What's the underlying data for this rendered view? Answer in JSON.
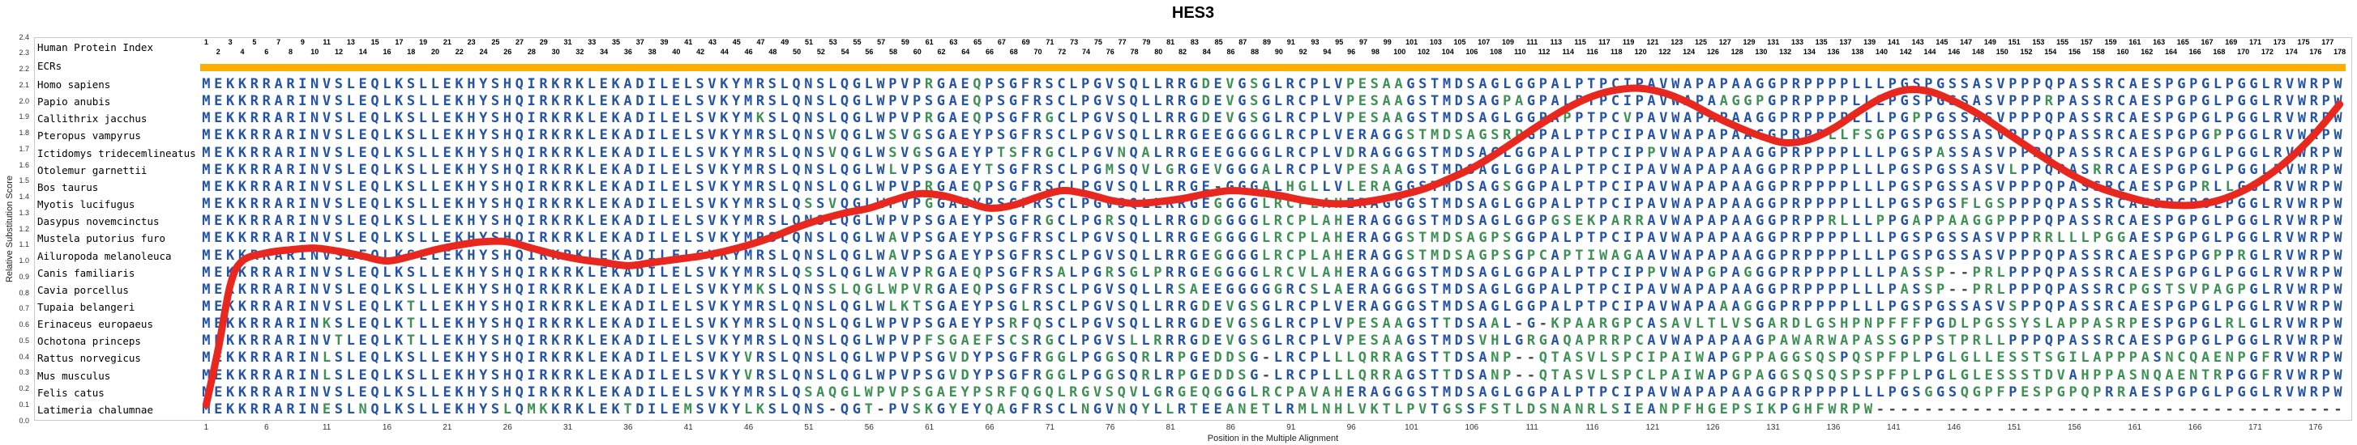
{
  "title": "HES3",
  "axes": {
    "y_label": "Relative Substitution Score",
    "x_label": "Position in the Multiple Alignment",
    "y_ticks": [
      "2.4",
      "2.3",
      "2.2",
      "2.1",
      "2.0",
      "1.9",
      "1.8",
      "1.7",
      "1.6",
      "1.5",
      "1.4",
      "1.3",
      "1.2",
      "1.1",
      "1.0",
      "0.9",
      "0.8",
      "0.7",
      "0.6",
      "0.5",
      "0.4",
      "0.3",
      "0.2",
      "0.1",
      "0.0"
    ],
    "x_ticks": [
      1,
      6,
      11,
      16,
      21,
      26,
      31,
      36,
      41,
      46,
      51,
      56,
      61,
      66,
      71,
      76,
      81,
      86,
      91,
      96,
      101,
      106,
      111,
      116,
      121,
      126,
      131,
      136,
      141,
      146,
      151,
      156,
      161,
      166,
      171,
      176
    ]
  },
  "header": {
    "index_label": "Human Protein Index",
    "ecr_label": "ECRs",
    "positions_start": 1,
    "positions_end": 178
  },
  "colors": {
    "match": "#2553A6",
    "mismatch": "#3E9155",
    "gap": "#4a4a4a",
    "curve": "#E8281E",
    "ecr_bar": "#FFAD00",
    "tick": "#333333"
  },
  "chart_data": {
    "type": "line",
    "title": "HES3",
    "xlabel": "Position in the Multiple Alignment",
    "ylabel": "Relative Substitution Score",
    "ylim": [
      0.0,
      2.4
    ],
    "xlim": [
      1,
      178
    ],
    "score_curve": {
      "x": [
        1,
        2,
        3,
        4,
        6,
        8,
        10,
        12,
        14,
        16,
        18,
        20,
        22,
        24,
        26,
        28,
        30,
        32,
        34,
        36,
        38,
        40,
        42,
        44,
        46,
        48,
        50,
        52,
        54,
        56,
        58,
        60,
        62,
        64,
        66,
        68,
        70,
        72,
        74,
        76,
        78,
        80,
        82,
        84,
        86,
        88,
        90,
        92,
        94,
        96,
        98,
        100,
        102,
        104,
        106,
        108,
        110,
        112,
        114,
        116,
        118,
        120,
        122,
        124,
        126,
        128,
        130,
        132,
        134,
        136,
        138,
        140,
        142,
        144,
        146,
        148,
        150,
        152,
        154,
        156,
        158,
        160,
        162,
        164,
        166,
        168,
        170,
        172,
        174,
        176,
        178
      ],
      "y": [
        0.1,
        0.45,
        0.85,
        1.0,
        1.05,
        1.07,
        1.08,
        1.06,
        1.03,
        1.0,
        1.03,
        1.07,
        1.1,
        1.12,
        1.12,
        1.08,
        1.04,
        1.01,
        0.99,
        0.97,
        0.99,
        1.01,
        1.03,
        1.06,
        1.1,
        1.15,
        1.21,
        1.26,
        1.3,
        1.33,
        1.38,
        1.42,
        1.41,
        1.37,
        1.33,
        1.35,
        1.4,
        1.44,
        1.42,
        1.38,
        1.36,
        1.37,
        1.39,
        1.42,
        1.44,
        1.43,
        1.41,
        1.38,
        1.36,
        1.36,
        1.38,
        1.41,
        1.45,
        1.51,
        1.58,
        1.67,
        1.77,
        1.87,
        1.96,
        2.03,
        2.07,
        2.08,
        2.05,
        1.99,
        1.91,
        1.84,
        1.78,
        1.74,
        1.76,
        1.83,
        1.93,
        2.02,
        2.07,
        2.06,
        2.0,
        1.92,
        1.82,
        1.72,
        1.62,
        1.53,
        1.46,
        1.41,
        1.37,
        1.35,
        1.35,
        1.38,
        1.44,
        1.53,
        1.65,
        1.8,
        1.98
      ]
    },
    "alignment": {
      "length": 178,
      "species": [
        {
          "name": "Homo sapiens",
          "sequence": "MEKKRRARINVSLEQLKSLLEKHYSHQIRKRKLEKADILELSVKYMRSLQNSLQGLWPVPRGAEQPSGFRSCLPGVSQLLRRGDEVGSGLRCPLVPESAAGSTMDSAGLGGPALPTPCIPAVWAPAPAAGGPRPPPPLLLPGSPGSSASVPPPQPASSRCAESPGPGLPGGLRVWRPW"
        },
        {
          "name": "Papio anubis",
          "sequence": "MEKKRRARINVSLEQLKSLLEKHYSHQIRKRKLEKADILELSVKYMRSLQNSLQGLWPVPSGAEQPSGFRSCLPGVSQLLRRGDEVGSGLRCPLVPESAAGSTMDSAGPAGPALPTPCIPAVWAPAAGGPGPRPPPPLLLPGSPGSSASVPPPRPASSRCAESPGPGLPGGLRVWRPW"
        },
        {
          "name": "Callithrix jacchus",
          "sequence": "MEKKRRARINVSLEQLKSLLEKHYSHQIRKRKLEKADILELSVKYMKSLQNSLQGLWPVPRGAEQPSGFRGCLPGVSQLLRRGDEVGSGLRCPLVPESAAGSTMDSAGLGGPAPPTPCVPAVWAPAPAAGGPRPPPPLLLPGPPGSSASVPPPQPASSRCAESPGPGLPGGLRVWRPW"
        },
        {
          "name": "Pteropus vampyrus",
          "sequence": "MEKKRRARINVSLEQLKSLLEKHYSHQIRKRKLEKADILELSVKYMRSLQNSVQGLWSVGSGAEYPSGFRSCLPGVSQLLRRGEEGGGGLRCPLVERAGGSTMDSAGSRPGPALPTPCIPAVWAPAPAAGGPRPPLLFSGPGSPGSSASVPPPQPASSRCAESPGPGPPGGLRVWRPW"
        },
        {
          "name": "Ictidomys tridecemlineatus",
          "sequence": "MEKKRRARINVSLEQLKSLLEKHYSHQIRKRKLEKADILELSVKYMRSLQNSVQGLWSVGSGAEYPTSFRGCLPGVNQALRRGEEGGGGLRCPLVDRAGGGSTMDSAGLGGPALPTPCIPPVWAPAPAAGGPRPPPPLLLPGSPASSASVPPPQPASSRCAESPGPGLPGGLRVWRPW"
        },
        {
          "name": "Otolemur garnettii",
          "sequence": "MEKKRRARINVSLEQLKSLLEKHYSHQIRKRKLEKADILELSVKYMRSLQNSLQGLWLVPSGAEYTSGFRSCLPGMSQVLGRGEVGGGALRCPLVPESAAGSTMDSAGLGGPALPTPCIPAVWAPAPAAGGPRPPPPLLLPGSPGSSASVLPPQPASRRCAESPGPGLPGGLRVWRPW"
        },
        {
          "name": "Bos taurus",
          "sequence": "MEKKRRARINVSLEQLKSLLEKHYSHQIRKRKLEKADILELSVKYMRSLQNSLQGLWPVPRGAEQPSGFRSCLPGVSQLLRRGE-GGGALHGLLVLERAGGSTMDSAGSGGPALPTPCIPAVWAPAPAAGGPRPPPPLLLPGSPGSSASVPPPQPASSRCAESPGPRLLGGLRVWRPW"
        },
        {
          "name": "Myotis lucifugus",
          "sequence": "MEKKRRARINVSLEQLKSLLEKHYSHQIRKRKLEKADILELSVKYMRSLQSSVQGLWPVPGGAEYPSGFRSCLPGVSQLLRRGEGGGGLRCPLAHERAGGGSTMDSAGLGGPALPTPCIPAVWAPAPAAGGPRPPPPLLLPGSPGSFLGSPPPQPASSRCAESPGPGLPGGLRVWRPW"
        },
        {
          "name": "Dasypus novemcinctus",
          "sequence": "MEKKRRARINVSLEQLKSLLEKHYSHQIRKRKLEKADILELSVKYMRSLQNSLQGLWPVPSGAEYPSGFRGCLPGRSQLLRRGDGGGGLRCPLAHERAGGGSTMDSAGLGGPGSEKPARRAVWAPAPAAGGPRPPRLLLPPGAPPAAGGPPPPQPASSRCAESPGPGLPGGLRVWRPW"
        },
        {
          "name": "Mustela putorius furo",
          "sequence": "MEKKRRARINVSLEQLKSLLEKHYSHQIRKRKLEKADILELSVKYMRSLQNSLQGLWAVPSGAEYPSGFRSCLPGVSQLLRRGEGGGGLRCPLAHERAGGSTMDSAGPSGGPALPTPCIPAVWAPAPAAGGPRPPPPLLLPGSPGSSASVPPRRLLLPGGAESPGPGLPGGLRVWRPW"
        },
        {
          "name": "Ailuropoda melanoleuca",
          "sequence": "MEKKRRARINVSLEQLKSLLEKHYSHQIRKRKLEKADILELSVKYMRSLQNSLQGLWAVPSGAEYPSGFRSCLPGVSQLLRRGEGGGGLRCPLAHERAGGSTMDSAGPSGPCAPTIWAGAAVWAPAPAAGGPRPPPPLLLPGSPGSSASVPPPQPASSRCAESPGPGPPRGLRVWRPW"
        },
        {
          "name": "Canis familiaris",
          "sequence": "MEKKRRARINVSLEQLKSLLEKHYSHQIRKRKLEKADILELSVKYMRSLQSSLQGLWAVPRGAEQPSGFRSALPGRSGLPRRGEGGGGLRCVLAHERAGGGSTMDSAGLGGPALPTPCIPPVWAPGPAGGGPRPPPPLLLPASSP--PRLPPPQPASSRCAESPGPGLPGGLRVWRPW"
        },
        {
          "name": "Cavia porcellus",
          "sequence": "MEKKRRARINVSLEQLKSLLEKHYSHQIRKRKLEKADILELSVKYMKSLQNSSLQGLWPVRGAEQPSGFRSCLPGVSQLLRSAEEGGGGGRCSLAERAGGGSTMDSAGLGGPALPTPCIPAVWAPAPAAGGPRPPPPLLLPASSP--PRLPPPQPASSRCPGSTSVPAGPGLRVWRPW"
        },
        {
          "name": "Tupaia belangeri",
          "sequence": "MEKKRRARINVSLEQLKTLLEKHYSHQIRKRKLEKADILELSVKYMRSLQNSLQGLWLKTSGAEYPSGLRSCLPGVSQLLRRGDEVGSGLRCPLVERAGGGSTMDSAGLGGPALPTPCIPAVWAPAAAGGGPRPPPPLLLPGSPGSSASVSPPQPASSRCAESPGPGLPGGLRVWRPW"
        },
        {
          "name": "Erinaceus europaeus",
          "sequence": "MEKKRRARINKSLEQLKTLLEKHYSHQIRKRKLEKADILELSVKYMRSLQNSLQGLWPVPSGAEYPSRFQSCLPGVSQLLRRGDEVGSGLRCPLVPESAAGSTTDSAAL-G-KPAARGPCASAVLTLVSGARDLGSHPNPFFFPGDLPGSSYSLAPPASRPESPGPGLRLGLRVWRPW"
        },
        {
          "name": "Ochotona princeps",
          "sequence": "MEKKRRARINVTLEQLKTLLEKHYSHQIRKRKLEKADILELSVKYMRSLQNSLQGLWPVPFSGAEFSCSRGCLPGVSLLRRRGDEVGSGLRCPLVPESAAGSTMDSVHLGRGAQAPRRPCAVWAPAPAAGPAWARWAPASSGPPSTPRLLPPPQPASSRCAESPGPGLPGGLRVWRPW"
        },
        {
          "name": "Rattus norvegicus",
          "sequence": "MEKKRRARINLSLEQLKSLLEKHYSHQIRKRKLEKADILELSVKYVRSLQNSLQGLWPVPSGVDYPSGFRGGLPGGSQRLRPGEDDSG-LRCPLLLQRRAGSTTDSANP--QTASVLSPCIPAIWAPGPPAGGSQSPQSPFPLPGLGLLESSTSGILAPPPASNCQAENPGFRVWRPW"
        },
        {
          "name": "Mus musculus",
          "sequence": "MEKKRRARINLSLEQLKSLLEKHYSHQIRKRKLEKADILELSVKYVRSLQNSLQGLWPVPSGVDYPSGFRGGLPGGSQRLRPGEDDSG-LRCPLLLQRRAGSTTDSANP--QTASVLSPCLPAIWAPGPAGGSQSQSPSPFPLPGLGLESSSTDVAHPPASNQAENTRPGGFRVWRPW"
        },
        {
          "name": "Felis catus",
          "sequence": "MEKKRRARINVSLEQLKSLLEKHYSHQIRKRKLEKADILELSVKYMRSLQSAQGLWPVPSGAEYPSRFQGQLRGVSQVLGRGEQGGGLRCPAVAHERAGGGSTMDSAGLGGPALPTPCIPAVWAPAPAAGGPRPPPPLLLPGSGGSQGPFPESPGPQPRRAESPGPGLPGGLRVWRPW"
        },
        {
          "name": "Latimeria chalumnae",
          "sequence": "MEKKRRARINESLNQLKSLLEKHYSLQMKKRKLEKTDILEMSVKYLKSLQNS-QGT-PVSKGYEYQAGFRSCLNGVNQYLLRTEEANETLRMLNHLVKTLPVTGSSFSTLDSNANRLSIEANPFHGEPSIKPGHFWRPW---------------------------------------"
        }
      ]
    }
  }
}
